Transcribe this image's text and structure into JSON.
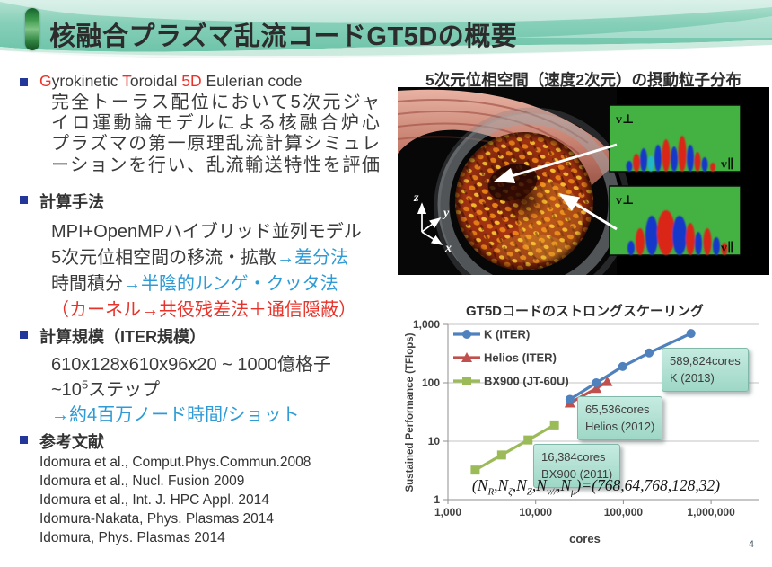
{
  "slide": {
    "title": "核融合プラズマ乱流コードGT5Dの概要",
    "page_number": "4"
  },
  "colors": {
    "header_teal": "#74c8ae",
    "header_mint": "#c2e8db",
    "accent_blue": "#2e9bd6",
    "accent_red": "#e8332a",
    "bullet_navy": "#23379b",
    "series_blue": "#4F81BD",
    "series_red": "#C0504D",
    "series_green": "#9BBB59",
    "callout_bg": "#a9ddcf",
    "inset_green": "#44b143"
  },
  "left": {
    "bullet1_rich": [
      {
        "t": "G",
        "c": "red"
      },
      {
        "t": "yrokinetic ",
        "c": "black"
      },
      {
        "t": "T",
        "c": "red"
      },
      {
        "t": "oroidal ",
        "c": "black"
      },
      {
        "t": "5D",
        "c": "red"
      },
      {
        "t": " Eulerian code",
        "c": "black"
      }
    ],
    "bullet1_body": [
      "完全トーラス配位において5次元ジャ",
      "イロ運動論モデルによる核融合炉心",
      "プラズマの第一原理乱流計算シミュレ",
      "ーションを行い、乱流輸送特性を評価"
    ],
    "bullet2": "計算手法",
    "bullet2_lines": [
      [
        {
          "t": "MPI+OpenMPハイブリッド並列モデル",
          "c": "black"
        }
      ],
      [
        {
          "t": "5次元位相空間の移流・拡散",
          "c": "black"
        },
        {
          "t": "→差分法",
          "c": "blue"
        }
      ],
      [
        {
          "t": "時間積分",
          "c": "black"
        },
        {
          "t": "→半陰的ルンゲ・クッタ法",
          "c": "blue"
        }
      ],
      [
        {
          "t": "（カーネル→共役残差法＋通信隠蔽）",
          "c": "red"
        }
      ]
    ],
    "bullet3": "計算規模（ITER規模）",
    "bullet3_lines": [
      [
        {
          "t": "610x128x610x96x20 ~ 1000億格子",
          "c": "black"
        }
      ],
      [
        {
          "t": "~10",
          "c": "black"
        },
        {
          "t": "5",
          "c": "sup"
        },
        {
          "t": "ステップ",
          "c": "black"
        }
      ],
      [
        {
          "t": "→約4百万ノード時間/ショット",
          "c": "blue"
        }
      ]
    ],
    "bullet4": "参考文献",
    "references": [
      "Idomura et al., Comput.Phys.Commun.2008",
      "Idomura et al., Nucl. Fusion 2009",
      "Idomura et al., Int. J. HPC Appl. 2014",
      "Idomura-Nakata, Phys. Plasmas 2014",
      "Idomura, Phys. Plasmas 2014"
    ]
  },
  "right": {
    "image_caption": "5次元位相空間（速度2次元）の摂動粒子分布",
    "inset_labels": {
      "vperp": "v⊥",
      "vpar": "v∥"
    },
    "axes_labels": {
      "x": "x",
      "y": "y",
      "z": "z"
    }
  },
  "chart_data": {
    "type": "line",
    "title": "GT5Dコードのストロングスケーリング",
    "xlabel": "cores",
    "ylabel": "Sustained Performance (TFlops)",
    "x_scale": "log",
    "y_scale": "log",
    "xlim": [
      1000,
      1000000
    ],
    "ylim": [
      1,
      1000
    ],
    "x_ticks": [
      "1,000",
      "10,000",
      "100,000",
      "1,000,000"
    ],
    "y_ticks": [
      "1",
      "10",
      "100",
      "1,000"
    ],
    "grid": "horizontal",
    "legend_position": "top-left",
    "series": [
      {
        "name": "BX900 (JT-60U)",
        "color": "#9BBB59",
        "marker": "square",
        "points": [
          [
            2048,
            3.2
          ],
          [
            4096,
            5.8
          ],
          [
            8192,
            10.5
          ],
          [
            16384,
            19
          ]
        ]
      },
      {
        "name": "Helios (ITER)",
        "color": "#C0504D",
        "marker": "triangle",
        "points": [
          [
            24576,
            45
          ],
          [
            49152,
            80
          ],
          [
            65536,
            105
          ]
        ]
      },
      {
        "name": "K (ITER)",
        "color": "#4F81BD",
        "marker": "circle",
        "points": [
          [
            24576,
            52
          ],
          [
            49152,
            100
          ],
          [
            98304,
            190
          ],
          [
            196608,
            325
          ],
          [
            589824,
            700
          ]
        ]
      }
    ],
    "legend_order": [
      "K (ITER)",
      "Helios (ITER)",
      "BX900 (JT-60U)"
    ],
    "callouts": [
      {
        "lines": [
          "589,824cores",
          "K (2013)"
        ]
      },
      {
        "lines": [
          "65,536cores",
          "Helios (2012)"
        ]
      },
      {
        "lines": [
          "16,384cores",
          "BX900 (2011)"
        ]
      }
    ],
    "annotation_segments": [
      {
        "t": "("
      },
      {
        "t": "N"
      },
      {
        "t": "R",
        "sub": true
      },
      {
        "t": ","
      },
      {
        "t": "N"
      },
      {
        "t": "ζ",
        "sub": true
      },
      {
        "t": ","
      },
      {
        "t": "N"
      },
      {
        "t": "Z",
        "sub": true
      },
      {
        "t": ","
      },
      {
        "t": "N"
      },
      {
        "t": "v//",
        "sub": true
      },
      {
        "t": ","
      },
      {
        "t": "N"
      },
      {
        "t": "μ",
        "sub": true
      },
      {
        "t": ")=(768,64,768,128,32)"
      }
    ]
  }
}
